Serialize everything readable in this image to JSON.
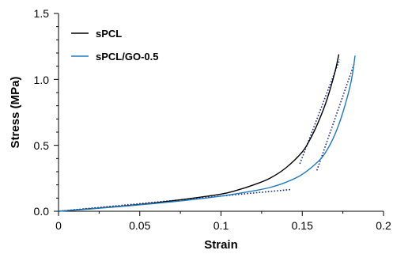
{
  "chart_data": {
    "type": "line",
    "xlabel": "Strain",
    "ylabel": "Stress (MPa)",
    "xlim": [
      0,
      0.2
    ],
    "ylim": [
      0,
      1.5
    ],
    "x_ticks": [
      "0",
      "0.05",
      "0.1",
      "0.15",
      "0.2"
    ],
    "y_ticks": [
      "0.0",
      "0.5",
      "1.0",
      "1.5"
    ],
    "grid": false,
    "legend_position": "top-left",
    "series": [
      {
        "name": "sPCL",
        "color": "#000000",
        "x": [
          0,
          0.02,
          0.04,
          0.06,
          0.08,
          0.1,
          0.11,
          0.12,
          0.13,
          0.14,
          0.15,
          0.155,
          0.16,
          0.165,
          0.17,
          0.1725
        ],
        "y": [
          0,
          0.02,
          0.04,
          0.065,
          0.095,
          0.13,
          0.16,
          0.2,
          0.25,
          0.33,
          0.45,
          0.55,
          0.68,
          0.84,
          1.05,
          1.19
        ]
      },
      {
        "name": "sPCL/GO-0.5",
        "color": "#1f7bbf",
        "x": [
          0,
          0.02,
          0.04,
          0.06,
          0.08,
          0.1,
          0.12,
          0.13,
          0.14,
          0.15,
          0.16,
          0.165,
          0.17,
          0.175,
          0.18,
          0.1825
        ],
        "y": [
          0,
          0.018,
          0.038,
          0.06,
          0.085,
          0.115,
          0.155,
          0.18,
          0.22,
          0.28,
          0.38,
          0.46,
          0.58,
          0.75,
          0.98,
          1.18
        ]
      }
    ],
    "tangent_lines": [
      {
        "color": "#1a2a8a",
        "x": [
          0.0,
          0.143
        ],
        "y": [
          0.0,
          0.165
        ]
      },
      {
        "color": "#1a2a8a",
        "x": [
          0.1485,
          0.173
        ],
        "y": [
          0.36,
          1.15
        ]
      },
      {
        "color": "#1a2a8a",
        "x": [
          0.159,
          0.182
        ],
        "y": [
          0.31,
          1.12
        ]
      }
    ]
  }
}
